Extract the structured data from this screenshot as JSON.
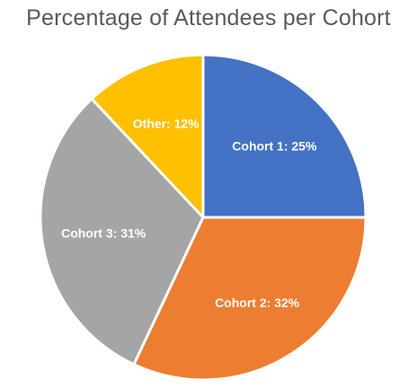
{
  "chart_data": {
    "type": "pie",
    "title": "Percentage of Attendees per Cohort",
    "start_angle_deg": 0,
    "direction": "clockwise",
    "slices": [
      {
        "label": "Cohort 1",
        "value": 25,
        "color": "#4472C4",
        "data_label": "Cohort 1: 25%"
      },
      {
        "label": "Cohort 2",
        "value": 32,
        "color": "#ED7D31",
        "data_label": "Cohort 2: 32%"
      },
      {
        "label": "Cohort 3",
        "value": 31,
        "color": "#A5A5A5",
        "data_label": "Cohort 3: 31%"
      },
      {
        "label": "Other",
        "value": 12,
        "color": "#FFC000",
        "data_label": "Other: 12%"
      }
    ]
  }
}
